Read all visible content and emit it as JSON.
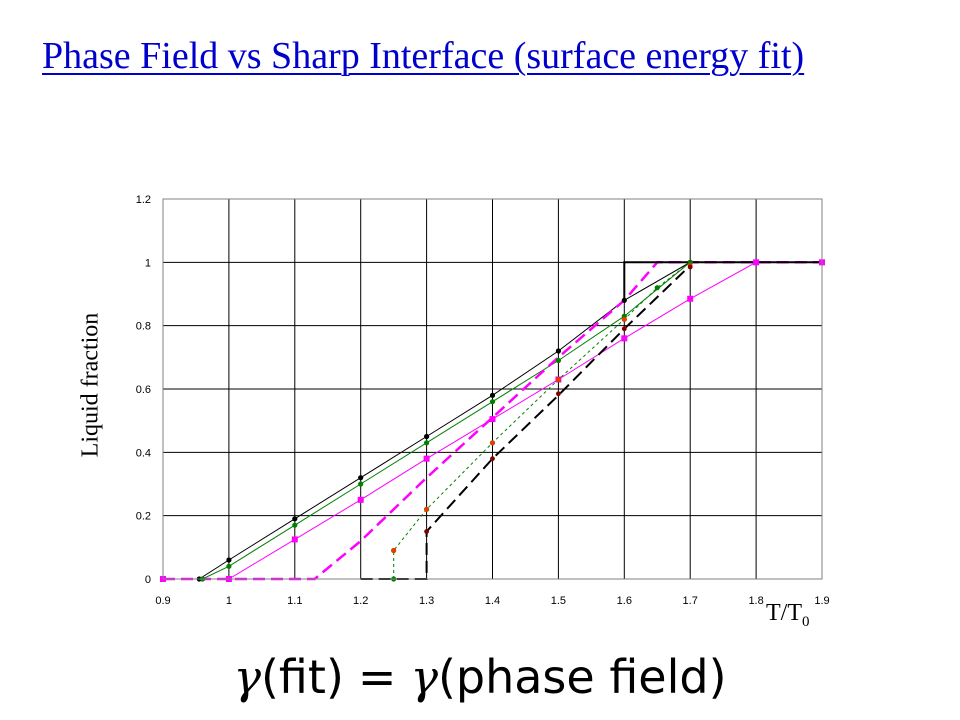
{
  "slide": {
    "title": "Phase Field vs Sharp Interface (surface energy fit)"
  },
  "equation": {
    "left_symbol": "γ",
    "left_arg": "(fit)",
    "equals": "=",
    "right_symbol": "γ",
    "right_arg": "(phase field)"
  },
  "chart_data": {
    "type": "line",
    "title": "",
    "ylabel": "Liquid fraction",
    "xlabel_main": "T/T",
    "xlabel_sub": "0",
    "xlim": [
      0.9,
      1.9
    ],
    "ylim": [
      0,
      1.2
    ],
    "x_ticks": [
      "0.9",
      "1",
      "1.1",
      "1.2",
      "1.3",
      "1.4",
      "1.5",
      "1.6",
      "1.7",
      "1.8",
      "1.9"
    ],
    "y_ticks": [
      "0",
      "0.2",
      "0.4",
      "0.6",
      "0.8",
      "1",
      "1.2"
    ],
    "grid": true,
    "legend": "none",
    "series": [
      {
        "color": "#000000",
        "style": "solid",
        "width": 1,
        "marker": "circle",
        "x": [
          0.9,
          0.955,
          1.0,
          1.1,
          1.2,
          1.3,
          1.4,
          1.5,
          1.6,
          1.7,
          1.8,
          1.9
        ],
        "y": [
          0,
          0,
          0.06,
          0.19,
          0.32,
          0.45,
          0.58,
          0.72,
          0.88,
          1.0,
          1.0,
          1.0
        ]
      },
      {
        "color": "#008000",
        "style": "solid",
        "width": 1,
        "marker": "circle",
        "x": [
          0.9,
          0.96,
          1.0,
          1.1,
          1.2,
          1.3,
          1.4,
          1.5,
          1.6,
          1.7,
          1.8,
          1.9
        ],
        "y": [
          0,
          0,
          0.04,
          0.17,
          0.3,
          0.43,
          0.56,
          0.69,
          0.83,
          1.0,
          1.0,
          1.0
        ]
      },
      {
        "color": "#ff00ff",
        "style": "solid",
        "width": 1,
        "marker": "square",
        "x": [
          0.9,
          1.0,
          1.1,
          1.2,
          1.3,
          1.4,
          1.5,
          1.6,
          1.7,
          1.8,
          1.9
        ],
        "y": [
          0,
          0,
          0.125,
          0.25,
          0.38,
          0.505,
          0.63,
          0.76,
          0.885,
          1.0,
          1.0
        ]
      },
      {
        "color": "#ff00ff",
        "style": "dashed",
        "width": 2.5,
        "marker": "none",
        "x": [
          0.9,
          1.13,
          1.2,
          1.3,
          1.4,
          1.5,
          1.6,
          1.65,
          1.9
        ],
        "y": [
          0,
          0,
          0.12,
          0.32,
          0.51,
          0.7,
          0.88,
          1.0,
          1.0
        ]
      },
      {
        "color": "#008000",
        "style": "dotted",
        "width": 1,
        "marker": "circle",
        "x": [
          1.25,
          1.25,
          1.3,
          1.4,
          1.5,
          1.6,
          1.65,
          1.7
        ],
        "y": [
          0,
          0.09,
          0.22,
          0.43,
          0.63,
          0.82,
          0.92,
          1.0
        ]
      },
      {
        "color": "#000000",
        "style": "dashed",
        "width": 2,
        "marker": "none",
        "x": [
          1.2,
          1.3,
          1.3,
          1.4,
          1.5,
          1.6,
          1.7
        ],
        "y": [
          0,
          0,
          0.15,
          0.38,
          0.58,
          0.79,
          0.99
        ]
      },
      {
        "color": "#000000",
        "style": "solid",
        "width": 2,
        "marker": "none",
        "x": [
          1.6,
          1.6,
          1.9
        ],
        "y": [
          0.88,
          1.0,
          1.0
        ]
      }
    ],
    "markers_extra": [
      {
        "color": "#ff3300",
        "x": [
          1.25,
          1.3,
          1.4,
          1.5,
          1.6,
          1.7
        ],
        "y": [
          0.09,
          0.22,
          0.43,
          0.63,
          0.82,
          0.99
        ]
      },
      {
        "color": "#800000",
        "x": [
          1.3,
          1.4,
          1.5,
          1.6,
          1.7
        ],
        "y": [
          0.15,
          0.38,
          0.585,
          0.79,
          0.985
        ]
      }
    ]
  }
}
